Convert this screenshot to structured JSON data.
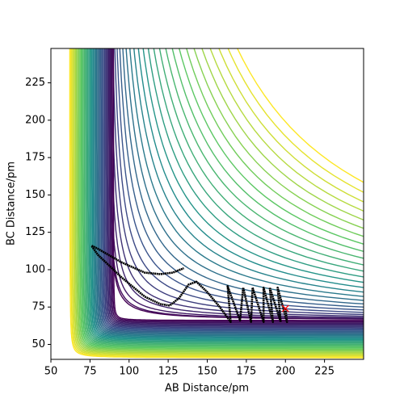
{
  "chart_data": {
    "type": "contour",
    "xlabel": "AB Distance/pm",
    "ylabel": "BC Distance/pm",
    "xlim": [
      50,
      250
    ],
    "ylim": [
      40,
      248
    ],
    "xticks": [
      50,
      75,
      100,
      125,
      150,
      175,
      200,
      225
    ],
    "yticks": [
      50,
      75,
      100,
      125,
      150,
      175,
      200,
      225
    ],
    "x": [
      200,
      201,
      195,
      197,
      190,
      192,
      186,
      186,
      179,
      178,
      173,
      171,
      163,
      165,
      158,
      150,
      143,
      138,
      132,
      126,
      120,
      110,
      95,
      80,
      76,
      80,
      95,
      110,
      120,
      128,
      135
    ],
    "values": [
      74,
      65,
      88,
      65,
      88,
      65,
      88,
      65,
      88,
      65,
      88,
      66,
      89,
      65,
      75,
      85,
      92,
      90,
      81,
      76,
      77,
      82,
      95,
      110,
      116,
      114,
      105,
      98,
      97,
      98,
      101
    ],
    "color": "#000000",
    "marker": {
      "x": 200,
      "y": 74,
      "color": "#ff0000"
    }
  }
}
